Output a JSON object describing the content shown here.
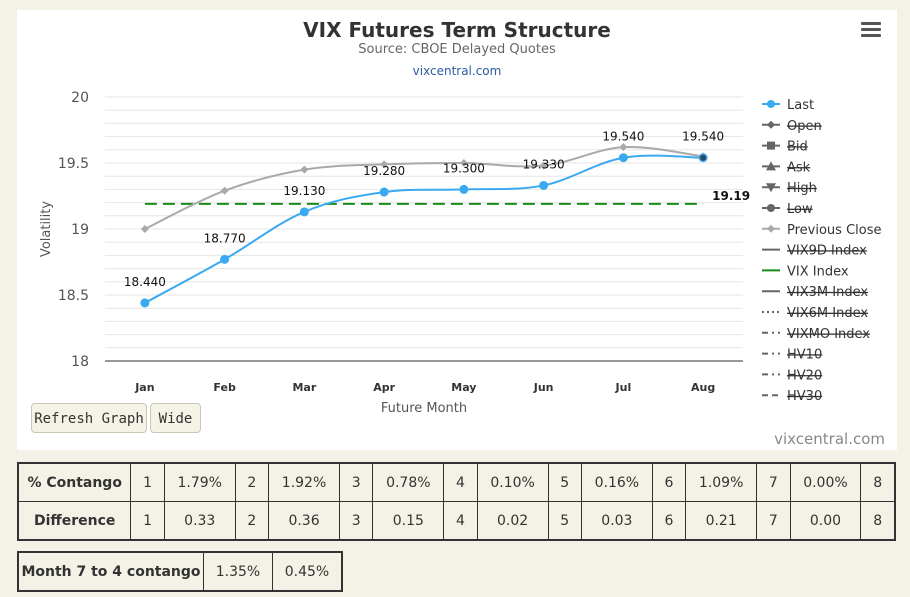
{
  "chart_data": {
    "type": "line",
    "title": "VIX Futures Term Structure",
    "subtitle": "Source: CBOE Delayed Quotes",
    "credit_link": "vixcentral.com",
    "xlabel": "Future Month",
    "ylabel": "Volatility",
    "categories": [
      "Jan",
      "Feb",
      "Mar",
      "Apr",
      "May",
      "Jun",
      "Jul",
      "Aug"
    ],
    "ylim": [
      18,
      20
    ],
    "yticks": [
      "18",
      "18.5",
      "19",
      "19.5",
      "20"
    ],
    "series": [
      {
        "name": "Last",
        "color": "#3aa9f0",
        "values": [
          18.44,
          18.77,
          19.13,
          19.28,
          19.3,
          19.33,
          19.54,
          19.54
        ],
        "labels": [
          "18.440",
          "18.770",
          "19.130",
          "19.280",
          "19.300",
          "19.330",
          "19.540",
          "19.540"
        ]
      },
      {
        "name": "Previous Close",
        "color": "#a9a9a9",
        "values": [
          19.0,
          19.29,
          19.45,
          19.49,
          19.5,
          19.48,
          19.62,
          19.55
        ]
      }
    ],
    "reference_line": {
      "name": "VIX Index",
      "value": 19.19,
      "label": "19.19",
      "color": "#1a8a1a"
    },
    "legend_position": "right",
    "legend": [
      {
        "label": "Last",
        "marker": "circle",
        "color": "#3aa9f0",
        "hidden": false,
        "line": "solid"
      },
      {
        "label": "Open",
        "marker": "diamond",
        "color": "#666",
        "hidden": true,
        "line": "solid"
      },
      {
        "label": "Bid",
        "marker": "square",
        "color": "#666",
        "hidden": true,
        "line": "solid"
      },
      {
        "label": "Ask",
        "marker": "triangle-up",
        "color": "#666",
        "hidden": true,
        "line": "solid"
      },
      {
        "label": "High",
        "marker": "triangle-down",
        "color": "#666",
        "hidden": true,
        "line": "solid"
      },
      {
        "label": "Low",
        "marker": "circle",
        "color": "#666",
        "hidden": true,
        "line": "solid"
      },
      {
        "label": "Previous Close",
        "marker": "diamond",
        "color": "#a9a9a9",
        "hidden": false,
        "line": "solid"
      },
      {
        "label": "VIX9D Index",
        "marker": "none",
        "color": "#666",
        "hidden": true,
        "line": "solid"
      },
      {
        "label": "VIX Index",
        "marker": "none",
        "color": "#1a8a1a",
        "hidden": false,
        "line": "solid"
      },
      {
        "label": "VIX3M Index",
        "marker": "none",
        "color": "#666",
        "hidden": true,
        "line": "solid"
      },
      {
        "label": "VIX6M Index",
        "marker": "none",
        "color": "#666",
        "hidden": true,
        "line": "dotted"
      },
      {
        "label": "VIXMO Index",
        "marker": "none",
        "color": "#666",
        "hidden": true,
        "line": "dashdot"
      },
      {
        "label": "HV10",
        "marker": "none",
        "color": "#666",
        "hidden": true,
        "line": "dashdot"
      },
      {
        "label": "HV20",
        "marker": "none",
        "color": "#666",
        "hidden": true,
        "line": "dashdot"
      },
      {
        "label": "HV30",
        "marker": "none",
        "color": "#666",
        "hidden": true,
        "line": "dash"
      }
    ]
  },
  "buttons": {
    "refresh": "Refresh Graph",
    "wide": "Wide"
  },
  "watermark": "vixcentral.com",
  "contango_table": {
    "rows": [
      {
        "header": "% Contango",
        "cells": [
          "1",
          "1.79%",
          "2",
          "1.92%",
          "3",
          "0.78%",
          "4",
          "0.10%",
          "5",
          "0.16%",
          "6",
          "1.09%",
          "7",
          "0.00%",
          "8"
        ]
      },
      {
        "header": "Difference",
        "cells": [
          "1",
          "0.33",
          "2",
          "0.36",
          "3",
          "0.15",
          "4",
          "0.02",
          "5",
          "0.03",
          "6",
          "0.21",
          "7",
          "0.00",
          "8"
        ]
      }
    ]
  },
  "month74": {
    "label": "Month 7 to 4 contango",
    "values": [
      "1.35%",
      "0.45%"
    ]
  }
}
